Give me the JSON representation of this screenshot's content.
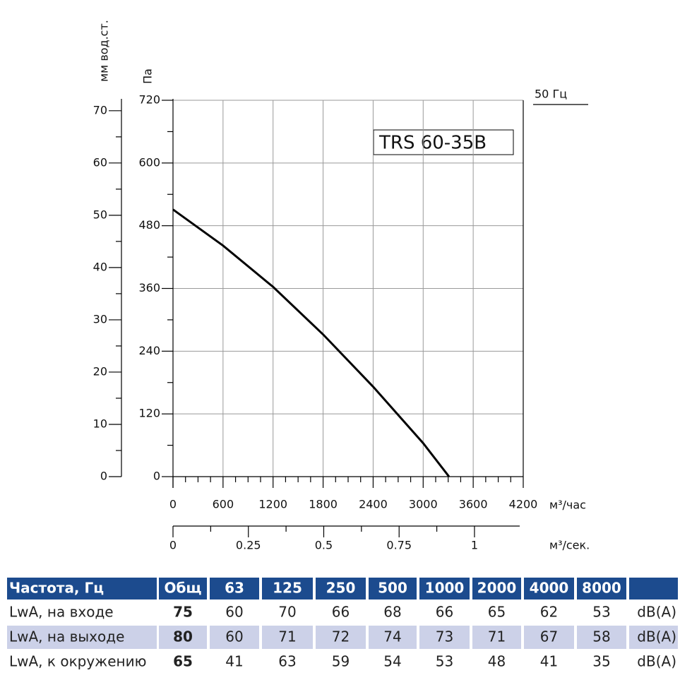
{
  "chart_data": {
    "type": "line",
    "x_label": "м³/час",
    "x2_label": "м³/сек.",
    "y_label": "Па",
    "y2_label": "мм вод.ст.",
    "frequency_label": "50 Гц",
    "model": "TRS 60-35B",
    "xlim": [
      0,
      4200
    ],
    "xticks": [
      0,
      600,
      1200,
      1800,
      2400,
      3000,
      3600,
      4200
    ],
    "x2lim": [
      0,
      1.15
    ],
    "x2ticks": [
      0,
      0.25,
      0.5,
      0.75,
      1
    ],
    "ylim": [
      0,
      720
    ],
    "yticks": [
      0,
      120,
      240,
      360,
      480,
      600,
      720
    ],
    "y2lim": [
      0,
      72
    ],
    "y2ticks": [
      0,
      10,
      20,
      30,
      40,
      50,
      60,
      70
    ],
    "grid": true,
    "series": [
      {
        "color": "#000000",
        "x": [
          0,
          600,
          1200,
          1800,
          2400,
          3000,
          3310
        ],
        "values": [
          511,
          442,
          363,
          272,
          172,
          64,
          0
        ]
      }
    ]
  },
  "table": {
    "header": [
      "Частота, Гц",
      "Общ",
      "63",
      "125",
      "250",
      "500",
      "1000",
      "2000",
      "4000",
      "8000"
    ],
    "rows": [
      [
        "LwA, на входе",
        75,
        60,
        70,
        66,
        68,
        66,
        65,
        62,
        53,
        "dB(A)"
      ],
      [
        "LwA, на выходе",
        80,
        60,
        71,
        72,
        74,
        73,
        71,
        67,
        58,
        "dB(A)"
      ],
      [
        "LwA, к окружению",
        65,
        41,
        63,
        59,
        54,
        53,
        48,
        41,
        35,
        "dB(A)"
      ]
    ]
  }
}
